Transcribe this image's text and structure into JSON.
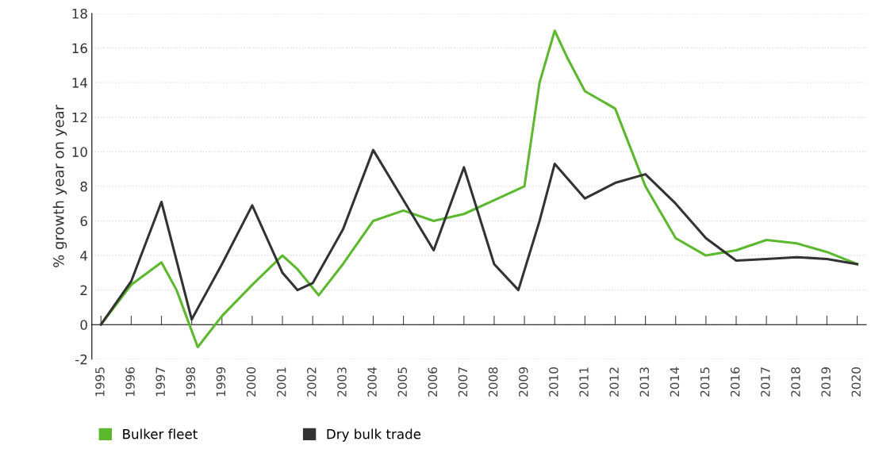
{
  "chart_data": {
    "type": "line",
    "ylabel": "% growth year on year",
    "xlim": [
      1994.7,
      2020.3
    ],
    "xticks": [
      1995,
      1996,
      1997,
      1998,
      1999,
      2000,
      2001,
      2002,
      2003,
      2004,
      2005,
      2006,
      2007,
      2008,
      2009,
      2010,
      2011,
      2012,
      2013,
      2014,
      2015,
      2016,
      2017,
      2018,
      2019,
      2020
    ],
    "ylim": [
      -2,
      18
    ],
    "yticks": [
      -2,
      0,
      2,
      4,
      6,
      8,
      10,
      12,
      14,
      16,
      18
    ],
    "grid": "y",
    "legend": "bottom left",
    "marker": "none",
    "line_style": "solid",
    "series": [
      {
        "name": "Bulker fleet",
        "color": "#5cb82e",
        "x": [
          1995,
          1996,
          1997,
          1997.5,
          1998.2,
          1999,
          2000,
          2001,
          2001.5,
          2002.2,
          2003,
          2004,
          2005,
          2006,
          2007,
          2008,
          2009,
          2009.5,
          2010,
          2010.4,
          2011,
          2012,
          2013,
          2014,
          2015,
          2016,
          2017,
          2018,
          2019,
          2020
        ],
        "values": [
          0,
          2.3,
          3.6,
          2.0,
          -1.3,
          0.5,
          2.3,
          4.0,
          3.2,
          1.7,
          3.5,
          6.0,
          6.6,
          6.0,
          6.4,
          7.2,
          8.0,
          14.0,
          17.0,
          15.5,
          13.5,
          12.5,
          8.0,
          5.0,
          4.0,
          4.3,
          4.9,
          4.7,
          4.2,
          3.5
        ]
      },
      {
        "name": "Dry bulk trade",
        "color": "#333333",
        "x": [
          1995,
          1996,
          1997,
          1998,
          1999,
          2000,
          2001,
          2001.5,
          2002,
          2003,
          2004,
          2005,
          2006,
          2007,
          2008,
          2008.8,
          2009.5,
          2010,
          2011,
          2012,
          2013,
          2014,
          2015,
          2016,
          2017,
          2018,
          2019,
          2020
        ],
        "values": [
          0,
          2.5,
          7.1,
          0.3,
          3.5,
          6.9,
          3.0,
          2.0,
          2.4,
          5.5,
          10.1,
          7.2,
          4.3,
          9.1,
          3.5,
          2.0,
          6.0,
          9.3,
          7.3,
          8.2,
          8.7,
          7.0,
          5.0,
          3.7,
          3.8,
          3.9,
          3.8,
          3.5
        ]
      }
    ]
  }
}
